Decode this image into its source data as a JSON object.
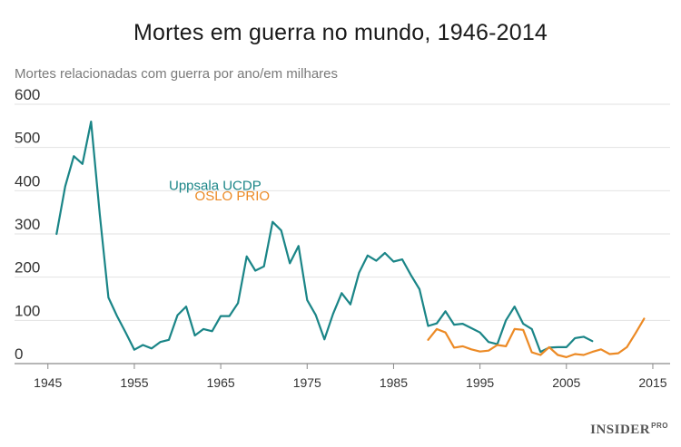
{
  "chart_data": {
    "type": "line",
    "title": "Mortes em guerra no mundo, 1946-2014",
    "ylabel": "Mortes relacionadas com guerra por ano/em milhares",
    "xlabel": "",
    "xlim": [
      1944.5,
      2017
    ],
    "ylim": [
      0,
      600
    ],
    "yticks": [
      0,
      100,
      200,
      300,
      400,
      500,
      600
    ],
    "xticks": [
      1945,
      1955,
      1965,
      1975,
      1985,
      1995,
      2005,
      2015
    ],
    "grid": "horizontal",
    "series": [
      {
        "name": "Uppsala UCDP",
        "color": "#1a8587",
        "x": [
          1946,
          1947,
          1948,
          1949,
          1950,
          1951,
          1952,
          1953,
          1954,
          1955,
          1956,
          1957,
          1958,
          1959,
          1960,
          1961,
          1962,
          1963,
          1964,
          1965,
          1966,
          1967,
          1968,
          1969,
          1970,
          1971,
          1972,
          1973,
          1974,
          1975,
          1976,
          1977,
          1978,
          1979,
          1980,
          1981,
          1982,
          1983,
          1984,
          1985,
          1986,
          1987,
          1988,
          1989,
          1990,
          1991,
          1992,
          1993,
          1994,
          1995,
          1996,
          1997,
          1998,
          1999,
          2000,
          2001,
          2002,
          2003,
          2004,
          2005,
          2006,
          2007,
          2008
        ],
        "values": [
          300,
          410,
          480,
          462,
          560,
          345,
          153,
          110,
          72,
          32,
          43,
          35,
          50,
          55,
          112,
          132,
          65,
          80,
          75,
          110,
          110,
          140,
          248,
          215,
          225,
          328,
          308,
          232,
          272,
          147,
          112,
          56,
          115,
          163,
          137,
          210,
          250,
          238,
          256,
          236,
          241,
          205,
          172,
          87,
          93,
          121,
          90,
          92,
          82,
          72,
          50,
          45,
          100,
          132,
          92,
          80,
          27,
          37,
          38,
          38,
          59,
          62,
          52
        ]
      },
      {
        "name": "OSLO PRIO",
        "color": "#ec8a25",
        "x": [
          1989,
          1990,
          1991,
          1992,
          1993,
          1994,
          1995,
          1996,
          1997,
          1998,
          1999,
          2000,
          2001,
          2002,
          2003,
          2004,
          2005,
          2006,
          2007,
          2008,
          2009,
          2010,
          2011,
          2012,
          2013,
          2014
        ],
        "values": [
          55,
          80,
          72,
          37,
          40,
          33,
          28,
          30,
          43,
          40,
          80,
          78,
          26,
          20,
          38,
          20,
          15,
          22,
          20,
          27,
          33,
          22,
          24,
          38,
          70,
          104
        ]
      }
    ],
    "annotations": [
      {
        "text": "Uppsala UCDP",
        "color": "#1a8587"
      },
      {
        "text": "OSLO PRIO",
        "color": "#ec8a25"
      }
    ],
    "brand": "INSIDER",
    "brand_sup": "PRO"
  }
}
